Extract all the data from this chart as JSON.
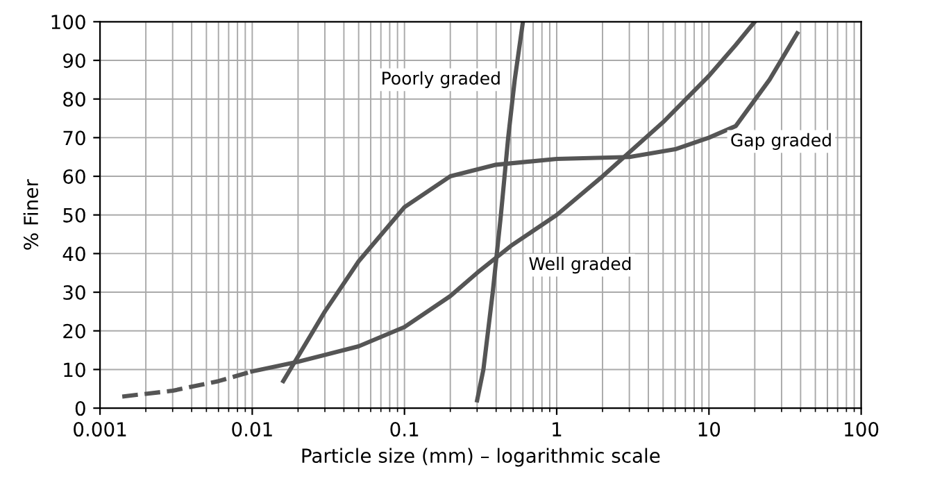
{
  "chart_data": {
    "type": "line",
    "xlabel": "Particle size (mm) – logarithmic scale",
    "ylabel": "% Finer",
    "log": "x",
    "grid": true,
    "xlim": [
      0.001,
      100
    ],
    "xticks": [
      0.001,
      0.01,
      0.1,
      1,
      10,
      100
    ],
    "ylim": [
      0,
      100
    ],
    "yticks": [
      0,
      10,
      20,
      30,
      40,
      50,
      60,
      70,
      80,
      90,
      100
    ],
    "series": [
      {
        "color": "#555555",
        "line_style": "dashed",
        "x": [
          0.0014,
          0.003,
          0.006,
          0.01
        ],
        "values": [
          3,
          4.5,
          7,
          9.5
        ]
      },
      {
        "color": "#555555",
        "line_style": "solid",
        "x": [
          0.01,
          0.02,
          0.05,
          0.1,
          0.2,
          0.3,
          0.5,
          1,
          2,
          5,
          10,
          15,
          20
        ],
        "values": [
          9.5,
          12,
          16,
          21,
          29,
          35,
          42,
          50,
          60,
          74,
          86,
          94,
          100
        ]
      },
      {
        "color": "#555555",
        "line_style": "solid",
        "x": [
          0.016,
          0.03,
          0.05,
          0.1,
          0.2,
          0.4,
          1,
          3,
          6,
          10,
          15,
          25,
          38
        ],
        "values": [
          7,
          25,
          38,
          52,
          60,
          63,
          64.5,
          65,
          67,
          70,
          73,
          85,
          97
        ]
      },
      {
        "color": "#555555",
        "line_style": "solid",
        "x": [
          0.3,
          0.33,
          0.38,
          0.43,
          0.48,
          0.53,
          0.6
        ],
        "values": [
          2,
          10,
          30,
          50,
          70,
          85,
          100
        ]
      }
    ],
    "annotations": [
      "Poorly graded",
      "Well graded",
      "Gap graded"
    ]
  }
}
